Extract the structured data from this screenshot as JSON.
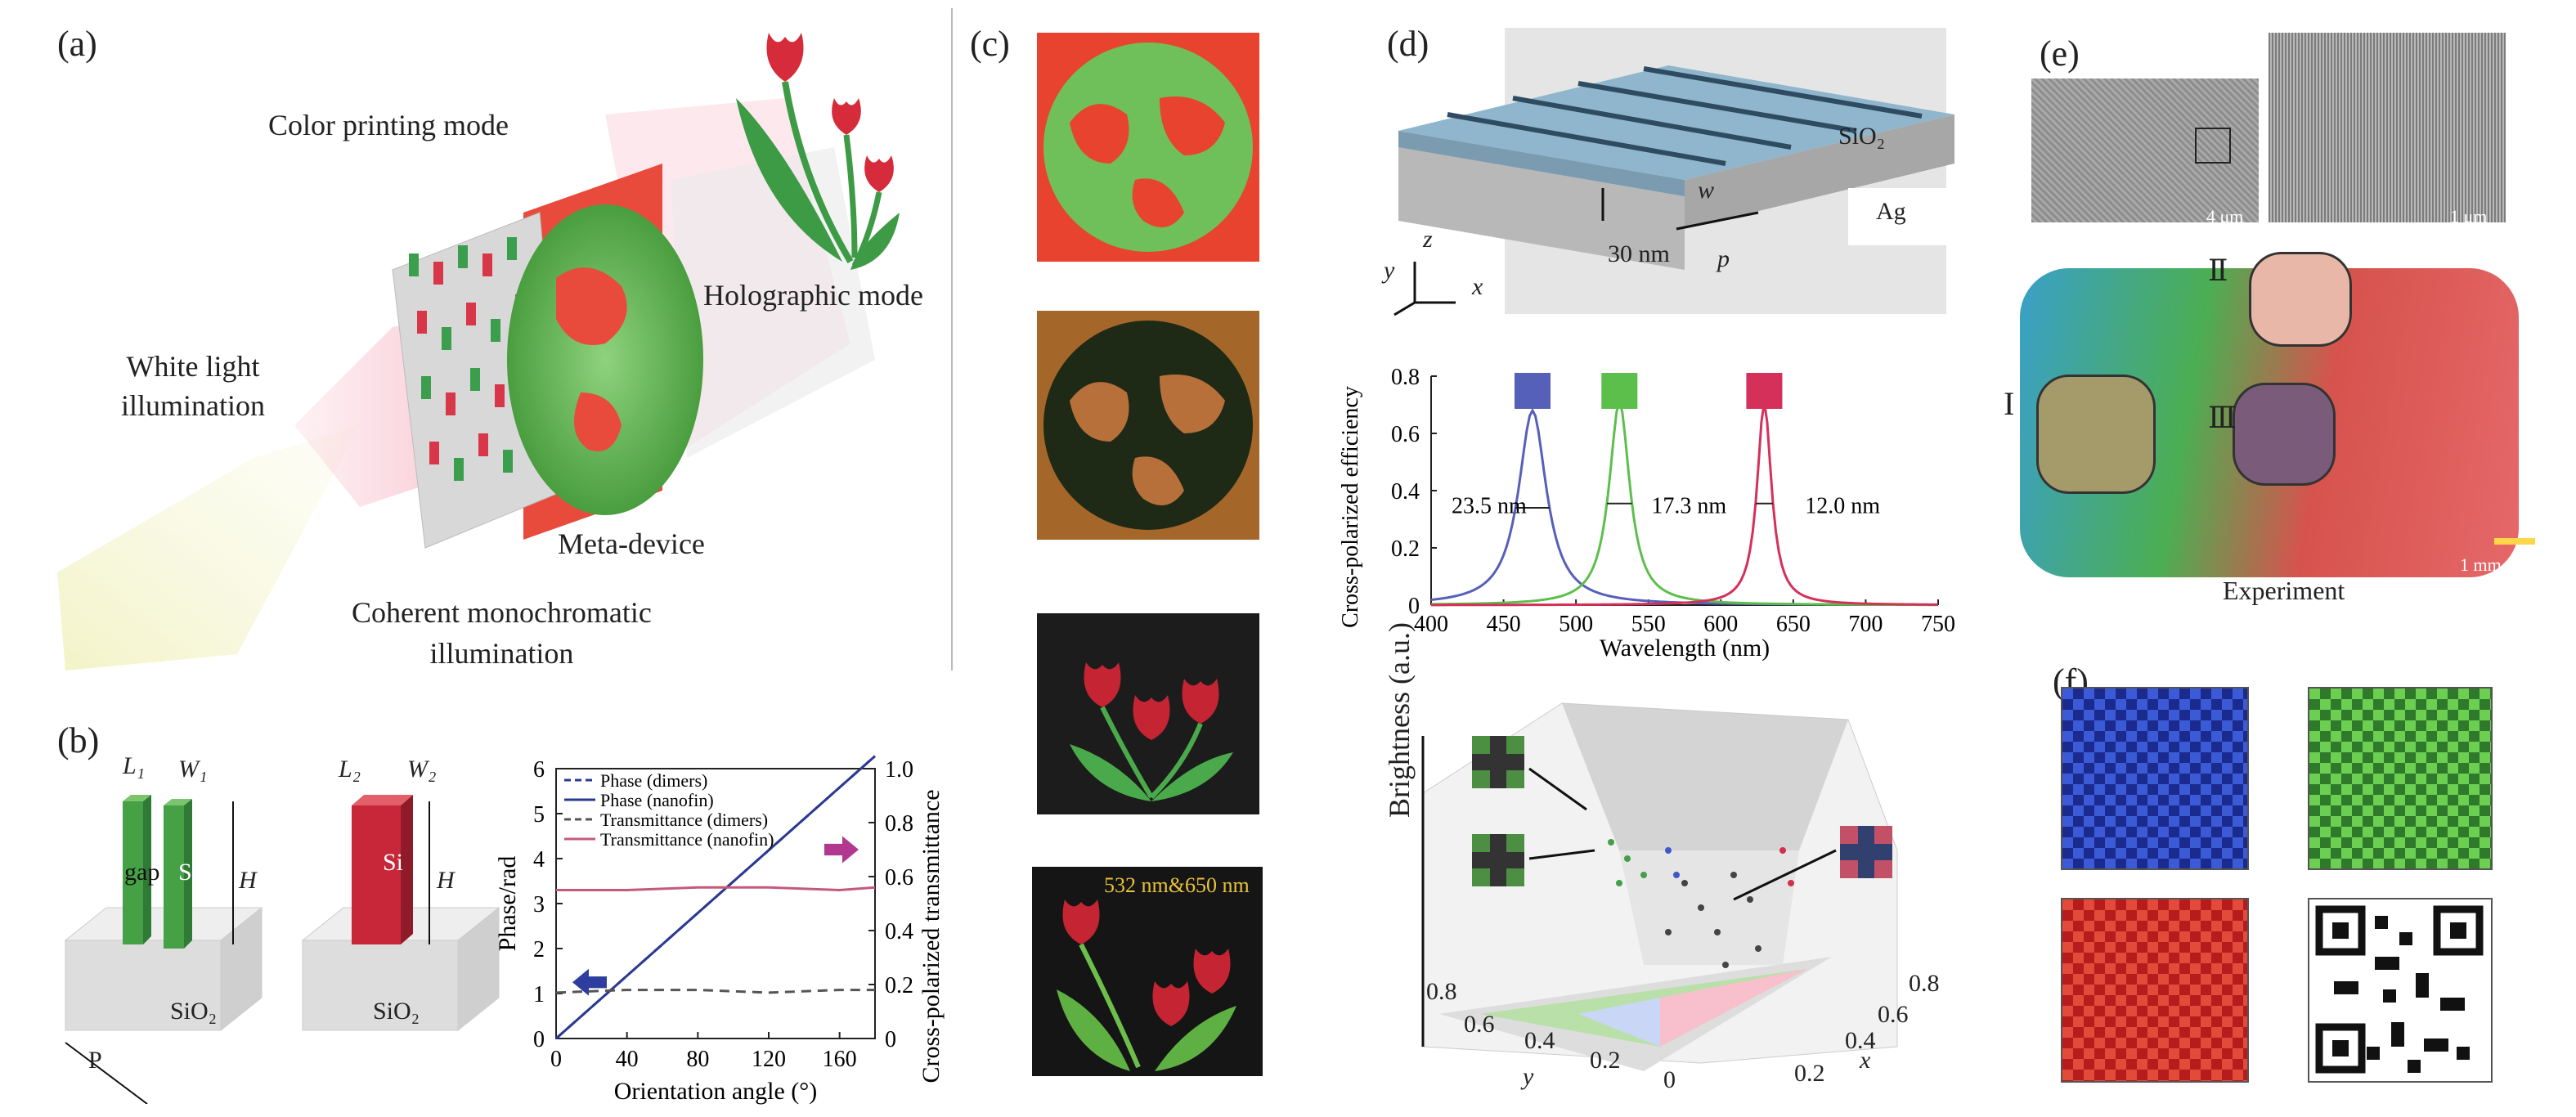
{
  "panels": {
    "a": {
      "label": "(a)",
      "color_printing": "Color printing mode",
      "holographic": "Holographic mode",
      "white_light": [
        "White light",
        "illumination"
      ],
      "meta_device": "Meta-device",
      "coherent": [
        "Coherent monochromatic",
        "illumination"
      ]
    },
    "b": {
      "label": "(b)",
      "L1": "L₁",
      "W1": "W₁",
      "gap": "gap",
      "Si": "Si",
      "H": "H",
      "P": "P",
      "SiO2": "SiO₂",
      "L2": "L₂",
      "W2": "W₂"
    },
    "c": {
      "label": "(c)",
      "annotation": "532 nm&650 nm"
    },
    "d": {
      "label": "(d)",
      "SiO2": "SiO₂",
      "Ag": "Ag",
      "w": "w",
      "p": "p",
      "thickness": "30 nm",
      "axis_y": "y",
      "axis_z": "z",
      "axis_x": "x",
      "brightness": "Brightness (a.u.)",
      "x3d": "x",
      "y3d": "y",
      "x3d_ticks": [
        "0.2",
        "0.4",
        "0.6",
        "0.8"
      ],
      "y3d_ticks": [
        "0",
        "0.2",
        "0.4",
        "0.6",
        "0.8"
      ]
    },
    "e": {
      "label": "(e)",
      "scale1": "4 μm",
      "scale2": "1 μm",
      "scale3": "1 mm",
      "roman_I": "I",
      "roman_II": "Ⅱ",
      "roman_III": "Ⅲ",
      "caption": "Experiment"
    },
    "f": {
      "label": "(f)"
    }
  },
  "chart_data": [
    {
      "type": "line",
      "xlabel": "Orientation angle (°)",
      "ylabel": "Phase/rad",
      "y2label": "Cross-polarized transmittance",
      "xlim": [
        0,
        180
      ],
      "ylim": [
        0,
        6
      ],
      "y2lim": [
        0,
        1.0
      ],
      "x_ticks": [
        "0",
        "40",
        "80",
        "120",
        "160"
      ],
      "y_ticks": [
        "0",
        "1",
        "2",
        "3",
        "4",
        "5",
        "6"
      ],
      "y2_ticks": [
        "0",
        "0.2",
        "0.4",
        "0.6",
        "0.8",
        "1.0"
      ],
      "legend": "top-left",
      "series": [
        {
          "name": "Phase (dimers)",
          "axis": "left",
          "style": "dashed",
          "color": "#2b3a8f",
          "x": [
            0,
            180
          ],
          "y": [
            0,
            6.28
          ]
        },
        {
          "name": "Phase (nanofin)",
          "axis": "left",
          "style": "solid",
          "color": "#2b3a8f",
          "x": [
            0,
            180
          ],
          "y": [
            0,
            6.28
          ]
        },
        {
          "name": "Transmittance (dimers)",
          "axis": "right",
          "style": "dashed",
          "color": "#555555",
          "x": [
            0,
            40,
            80,
            120,
            160,
            180
          ],
          "y": [
            0.17,
            0.18,
            0.18,
            0.17,
            0.18,
            0.18
          ]
        },
        {
          "name": "Transmittance (nanofin)",
          "axis": "right",
          "style": "solid",
          "color": "#c45a7a",
          "x": [
            0,
            40,
            80,
            120,
            160,
            180
          ],
          "y": [
            0.55,
            0.55,
            0.56,
            0.56,
            0.55,
            0.56
          ]
        }
      ],
      "arrow_colors": [
        "#2e3e9e",
        "#b0388e"
      ]
    },
    {
      "type": "line",
      "xlabel": "Wavelength (nm)",
      "ylabel": "Cross-polarized efficiency",
      "xlim": [
        400,
        750
      ],
      "ylim": [
        0,
        0.8
      ],
      "x_ticks": [
        "400",
        "450",
        "500",
        "550",
        "600",
        "650",
        "700",
        "750"
      ],
      "y_ticks": [
        "0",
        "0.2",
        "0.4",
        "0.6",
        "0.8"
      ],
      "series": [
        {
          "color": "#5560b8",
          "peak_x": 470,
          "peak_y": 0.68,
          "fwhm": 23.5
        },
        {
          "color": "#5cbf4c",
          "peak_x": 530,
          "peak_y": 0.71,
          "fwhm": 17.3
        },
        {
          "color": "#d4305a",
          "peak_x": 630,
          "peak_y": 0.71,
          "fwhm": 12.0
        }
      ],
      "annotations": [
        "23.5 nm",
        "17.3 nm",
        "12.0 nm"
      ]
    }
  ]
}
